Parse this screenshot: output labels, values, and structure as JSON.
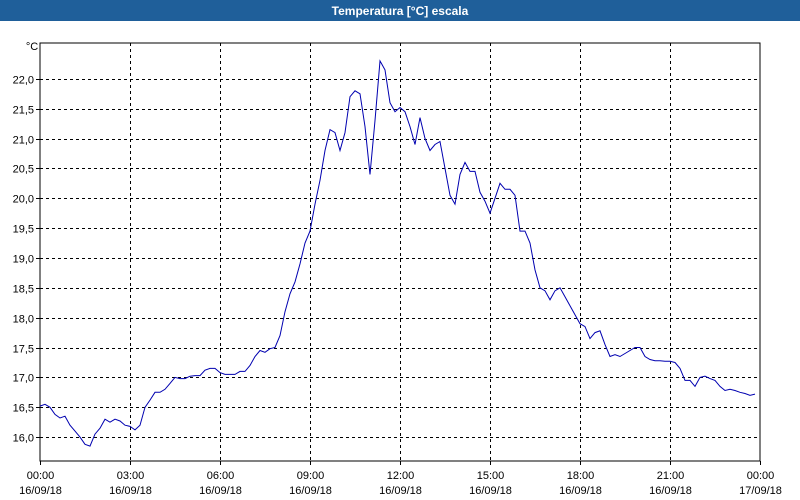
{
  "window": {
    "title": "Temperatura [°C] escala"
  },
  "chart_data": {
    "type": "line",
    "title": "Temperatura [°C] escala",
    "xlabel": "",
    "ylabel": "",
    "y_unit": "°C",
    "ylim": [
      15.6,
      22.6
    ],
    "xlim": [
      "2018-09-16 00:00",
      "2018-09-17 00:00"
    ],
    "grid": true,
    "y_ticks": [
      "16,0",
      "16,5",
      "17,0",
      "17,5",
      "18,0",
      "18,5",
      "19,0",
      "19,5",
      "20,0",
      "20,5",
      "21,0",
      "21,5",
      "22,0"
    ],
    "x_ticks": [
      {
        "time": "00:00",
        "date": "16/09/18"
      },
      {
        "time": "03:00",
        "date": "16/09/18"
      },
      {
        "time": "06:00",
        "date": "16/09/18"
      },
      {
        "time": "09:00",
        "date": "16/09/18"
      },
      {
        "time": "12:00",
        "date": "16/09/18"
      },
      {
        "time": "15:00",
        "date": "16/09/18"
      },
      {
        "time": "18:00",
        "date": "16/09/18"
      },
      {
        "time": "21:00",
        "date": "16/09/18"
      },
      {
        "time": "00:00",
        "date": "17/09/18"
      }
    ],
    "series": [
      {
        "color": "#0000b0",
        "x": [
          "00:00",
          "00:10",
          "00:20",
          "00:30",
          "00:40",
          "00:50",
          "01:00",
          "01:10",
          "01:20",
          "01:30",
          "01:40",
          "01:50",
          "02:00",
          "02:10",
          "02:20",
          "02:30",
          "02:40",
          "02:50",
          "03:00",
          "03:10",
          "03:20",
          "03:30",
          "03:40",
          "03:50",
          "04:00",
          "04:10",
          "04:20",
          "04:30",
          "04:40",
          "04:50",
          "05:00",
          "05:10",
          "05:20",
          "05:30",
          "05:40",
          "05:50",
          "06:00",
          "06:10",
          "06:20",
          "06:30",
          "06:40",
          "06:50",
          "07:00",
          "07:10",
          "07:20",
          "07:30",
          "07:40",
          "07:50",
          "08:00",
          "08:10",
          "08:20",
          "08:30",
          "08:40",
          "08:50",
          "09:00",
          "09:10",
          "09:20",
          "09:30",
          "09:40",
          "09:50",
          "10:00",
          "10:10",
          "10:20",
          "10:30",
          "10:40",
          "10:50",
          "11:00",
          "11:10",
          "11:20",
          "11:30",
          "11:40",
          "11:50",
          "12:00",
          "12:10",
          "12:20",
          "12:30",
          "12:40",
          "12:50",
          "13:00",
          "13:10",
          "13:20",
          "13:30",
          "13:40",
          "13:50",
          "14:00",
          "14:10",
          "14:20",
          "14:30",
          "14:40",
          "14:50",
          "15:00",
          "15:10",
          "15:20",
          "15:30",
          "15:40",
          "15:50",
          "16:00",
          "16:10",
          "16:20",
          "16:30",
          "16:40",
          "16:50",
          "17:00",
          "17:10",
          "17:20",
          "17:30",
          "17:40",
          "17:50",
          "18:00",
          "18:10",
          "18:20",
          "18:30",
          "18:40",
          "18:50",
          "19:00",
          "19:10",
          "19:20",
          "19:30",
          "19:40",
          "19:50",
          "20:00",
          "20:10",
          "20:20",
          "20:30",
          "20:40",
          "20:50",
          "21:00",
          "21:10",
          "21:20",
          "21:30",
          "21:40",
          "21:50",
          "22:00",
          "22:10",
          "22:20",
          "22:30",
          "22:40",
          "22:50",
          "23:00",
          "23:10",
          "23:20",
          "23:30",
          "23:40",
          "23:50"
        ],
        "values": [
          16.52,
          16.55,
          16.5,
          16.38,
          16.32,
          16.35,
          16.2,
          16.1,
          16.0,
          15.88,
          15.85,
          16.05,
          16.15,
          16.3,
          16.25,
          16.3,
          16.27,
          16.2,
          16.18,
          16.12,
          16.2,
          16.5,
          16.62,
          16.75,
          16.75,
          16.8,
          16.9,
          17.0,
          16.98,
          16.98,
          17.02,
          17.03,
          17.03,
          17.12,
          17.15,
          17.15,
          17.08,
          17.05,
          17.05,
          17.05,
          17.1,
          17.1,
          17.2,
          17.35,
          17.45,
          17.42,
          17.48,
          17.5,
          17.7,
          18.1,
          18.4,
          18.6,
          18.9,
          19.25,
          19.45,
          19.9,
          20.3,
          20.8,
          21.15,
          21.1,
          20.8,
          21.1,
          21.7,
          21.8,
          21.75,
          21.2,
          20.4,
          21.3,
          22.3,
          22.15,
          21.6,
          21.45,
          21.52,
          21.45,
          21.2,
          20.9,
          21.35,
          21.0,
          20.8,
          20.9,
          20.95,
          20.5,
          20.05,
          19.9,
          20.4,
          20.6,
          20.45,
          20.45,
          20.1,
          19.95,
          19.75,
          20.0,
          20.25,
          20.15,
          20.15,
          20.05,
          19.45,
          19.45,
          19.25,
          18.8,
          18.5,
          18.45,
          18.3,
          18.45,
          18.5,
          18.35,
          18.2,
          18.05,
          17.9,
          17.85,
          17.65,
          17.75,
          17.78,
          17.55,
          17.35,
          17.38,
          17.35,
          17.4,
          17.45,
          17.5,
          17.5,
          17.35,
          17.3,
          17.28,
          17.28,
          17.27,
          17.27,
          17.25,
          17.15,
          16.95,
          16.95,
          16.85,
          17.0,
          17.02,
          16.98,
          16.95,
          16.85,
          16.78,
          16.8,
          16.78,
          16.75,
          16.73,
          16.7,
          16.72
        ]
      }
    ]
  }
}
